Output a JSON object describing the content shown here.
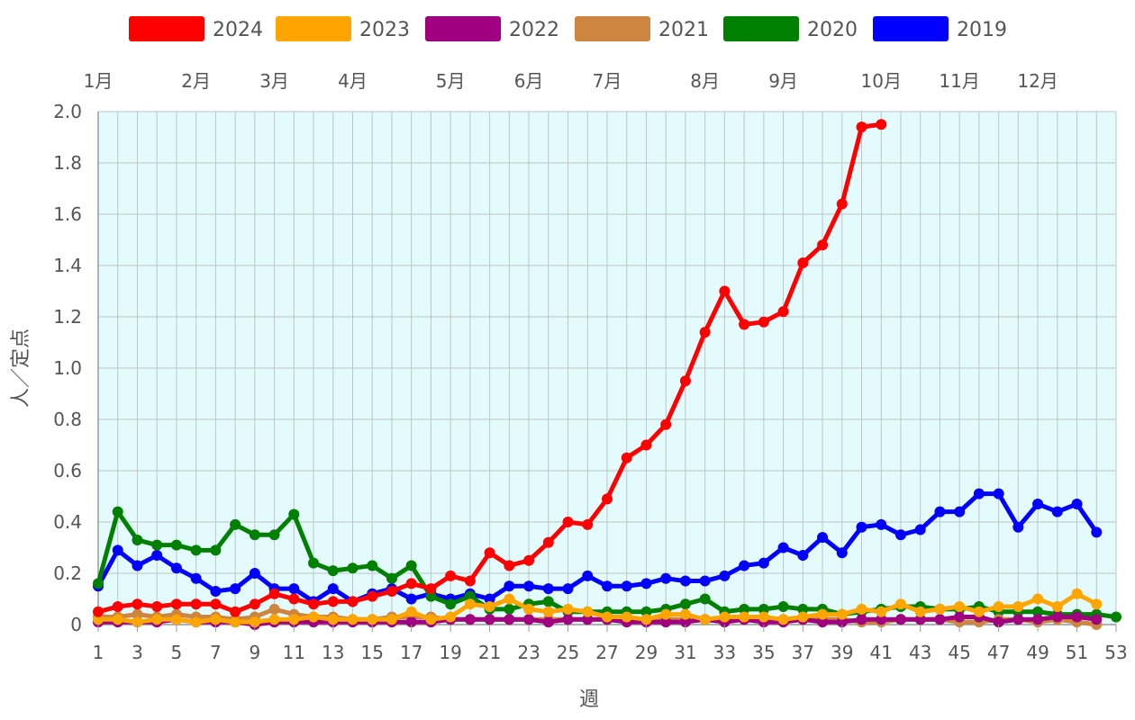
{
  "chart_data": {
    "type": "line",
    "xlabel": "週",
    "ylabel": "人／定点",
    "ylim": [
      0,
      2.0
    ],
    "yticks": [
      0,
      0.2,
      0.4,
      0.6,
      0.8,
      1.0,
      1.2,
      1.4,
      1.6,
      1.8,
      2.0
    ],
    "ytick_labels": [
      "0",
      "0.2",
      "0.4",
      "0.6",
      "0.8",
      "1.0",
      "1.2",
      "1.4",
      "1.6",
      "1.8",
      "2.0"
    ],
    "xlim": [
      1,
      53
    ],
    "xticks": [
      1,
      3,
      5,
      7,
      9,
      11,
      13,
      15,
      17,
      19,
      21,
      23,
      25,
      27,
      29,
      31,
      33,
      35,
      37,
      39,
      41,
      43,
      45,
      47,
      49,
      51,
      53
    ],
    "top_axis": {
      "labels": [
        "1月",
        "2月",
        "3月",
        "4月",
        "5月",
        "6月",
        "7月",
        "8月",
        "9月",
        "10月",
        "11月",
        "12月"
      ],
      "weeks": [
        1,
        6,
        10,
        14,
        19,
        23,
        27,
        32,
        36,
        41,
        45,
        49
      ]
    },
    "grid": true,
    "plot_background": "#e4fbfd",
    "legend_position": "top",
    "series": [
      {
        "name": "2024",
        "color": "#ff0000",
        "values": [
          0.05,
          0.07,
          0.08,
          0.07,
          0.08,
          0.08,
          0.08,
          0.05,
          0.08,
          0.12,
          0.1,
          0.08,
          0.09,
          0.09,
          0.11,
          0.13,
          0.16,
          0.14,
          0.19,
          0.17,
          0.28,
          0.23,
          0.25,
          0.32,
          0.4,
          0.39,
          0.49,
          0.65,
          0.7,
          0.78,
          0.95,
          1.14,
          1.3,
          1.17,
          1.18,
          1.22,
          1.41,
          1.48,
          1.64,
          1.94,
          1.95
        ]
      },
      {
        "name": "2023",
        "color": "#ffa500",
        "values": [
          0.02,
          0.02,
          0.01,
          0.02,
          0.02,
          0.01,
          0.02,
          0.01,
          0.01,
          0.02,
          0.02,
          0.03,
          0.02,
          0.02,
          0.02,
          0.02,
          0.05,
          0.02,
          0.03,
          0.08,
          0.07,
          0.1,
          0.06,
          0.05,
          0.06,
          0.05,
          0.03,
          0.03,
          0.02,
          0.04,
          0.04,
          0.02,
          0.03,
          0.03,
          0.03,
          0.02,
          0.03,
          0.04,
          0.04,
          0.06,
          0.05,
          0.08,
          0.05,
          0.06,
          0.07,
          0.05,
          0.07,
          0.07,
          0.1,
          0.07,
          0.12,
          0.08
        ]
      },
      {
        "name": "2022",
        "color": "#a0007f",
        "values": [
          0.01,
          0.01,
          0.01,
          0.01,
          0.02,
          0.01,
          0.01,
          0.01,
          0.0,
          0.01,
          0.01,
          0.01,
          0.01,
          0.01,
          0.01,
          0.01,
          0.01,
          0.01,
          0.02,
          0.02,
          0.02,
          0.02,
          0.02,
          0.01,
          0.02,
          0.02,
          0.02,
          0.01,
          0.01,
          0.01,
          0.01,
          0.02,
          0.01,
          0.02,
          0.01,
          0.01,
          0.02,
          0.01,
          0.01,
          0.02,
          0.02,
          0.02,
          0.02,
          0.02,
          0.03,
          0.03,
          0.01,
          0.02,
          0.02,
          0.03,
          0.03,
          0.02
        ]
      },
      {
        "name": "2021",
        "color": "#cd853f",
        "values": [
          0.03,
          0.03,
          0.04,
          0.03,
          0.04,
          0.03,
          0.03,
          0.02,
          0.03,
          0.06,
          0.04,
          0.03,
          0.03,
          0.02,
          0.02,
          0.03,
          0.03,
          0.03,
          0.02,
          0.02,
          0.02,
          0.02,
          0.02,
          0.02,
          0.02,
          0.02,
          0.02,
          0.02,
          0.02,
          0.02,
          0.02,
          0.02,
          0.02,
          0.02,
          0.02,
          0.02,
          0.02,
          0.02,
          0.02,
          0.01,
          0.01,
          0.02,
          0.02,
          0.02,
          0.01,
          0.01,
          0.02,
          0.02,
          0.01,
          0.02,
          0.01,
          0.0
        ]
      },
      {
        "name": "2020",
        "color": "#008000",
        "values": [
          0.16,
          0.44,
          0.33,
          0.31,
          0.31,
          0.29,
          0.29,
          0.39,
          0.35,
          0.35,
          0.43,
          0.24,
          0.21,
          0.22,
          0.23,
          0.18,
          0.23,
          0.11,
          0.08,
          0.11,
          0.06,
          0.06,
          0.08,
          0.09,
          0.05,
          0.05,
          0.05,
          0.05,
          0.05,
          0.06,
          0.08,
          0.1,
          0.05,
          0.06,
          0.06,
          0.07,
          0.06,
          0.06,
          0.04,
          0.05,
          0.06,
          0.07,
          0.07,
          0.06,
          0.06,
          0.07,
          0.05,
          0.05,
          0.05,
          0.04,
          0.04,
          0.04,
          0.03
        ]
      },
      {
        "name": "2019",
        "color": "#0000ff",
        "values": [
          0.15,
          0.29,
          0.23,
          0.27,
          0.22,
          0.18,
          0.13,
          0.14,
          0.2,
          0.14,
          0.14,
          0.09,
          0.14,
          0.09,
          0.12,
          0.14,
          0.1,
          0.12,
          0.1,
          0.12,
          0.1,
          0.15,
          0.15,
          0.14,
          0.14,
          0.19,
          0.15,
          0.15,
          0.16,
          0.18,
          0.17,
          0.17,
          0.19,
          0.23,
          0.24,
          0.3,
          0.27,
          0.34,
          0.28,
          0.38,
          0.39,
          0.35,
          0.37,
          0.44,
          0.44,
          0.51,
          0.51,
          0.38,
          0.47,
          0.44,
          0.47,
          0.36
        ]
      }
    ]
  }
}
